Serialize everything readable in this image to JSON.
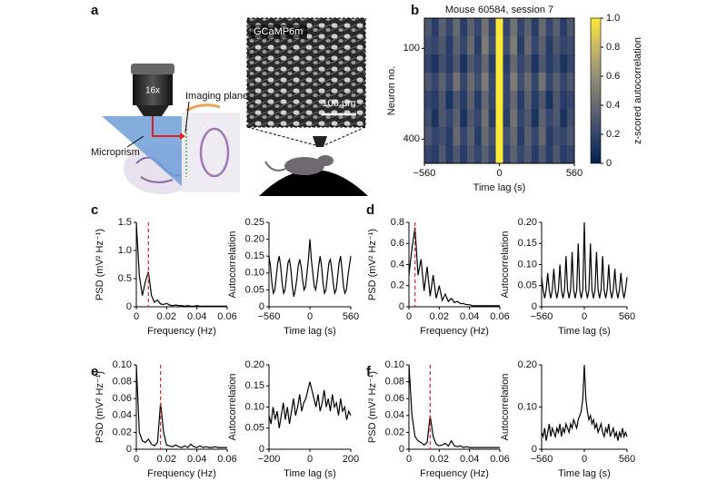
{
  "panel_labels": [
    "a",
    "b",
    "c",
    "d",
    "e",
    "f"
  ],
  "illustration": {
    "objective_label": "16x",
    "imaging_plane": "Imaging plane",
    "microprism": "Microprism",
    "indicator": "GCaMP6m",
    "scale_bar": "100 µm"
  },
  "chart_data": [
    {
      "type": "heatmap",
      "title": "Mouse 60584, session 7",
      "x_label": "Time lag (s)",
      "y_label": "Neuron no.",
      "xlim": [
        -560,
        560
      ],
      "xticks": [
        {
          "value": -560,
          "label": "−560"
        },
        0,
        560
      ],
      "ylim": [
        0,
        480
      ],
      "y_inverted": true,
      "yticks": [
        100,
        400
      ],
      "matrix": [
        [
          0.3,
          0.15,
          0.35,
          0.2,
          0.4,
          0.15,
          0.35,
          0.2,
          0.45,
          0.2,
          1.0,
          0.2,
          0.45,
          0.2,
          0.35,
          0.15,
          0.4,
          0.2,
          0.35,
          0.15,
          0.3
        ],
        [
          0.25,
          0.2,
          0.3,
          0.15,
          0.35,
          0.2,
          0.4,
          0.15,
          0.5,
          0.25,
          1.0,
          0.25,
          0.5,
          0.15,
          0.4,
          0.2,
          0.35,
          0.15,
          0.3,
          0.2,
          0.25
        ],
        [
          0.2,
          0.1,
          0.25,
          0.15,
          0.3,
          0.1,
          0.3,
          0.2,
          0.4,
          0.15,
          1.0,
          0.15,
          0.4,
          0.2,
          0.3,
          0.1,
          0.3,
          0.15,
          0.25,
          0.1,
          0.2
        ],
        [
          0.3,
          0.2,
          0.35,
          0.2,
          0.45,
          0.2,
          0.4,
          0.25,
          0.5,
          0.2,
          1.0,
          0.2,
          0.5,
          0.25,
          0.4,
          0.2,
          0.45,
          0.2,
          0.35,
          0.2,
          0.3
        ],
        [
          0.2,
          0.15,
          0.3,
          0.1,
          0.3,
          0.15,
          0.35,
          0.15,
          0.4,
          0.2,
          1.0,
          0.2,
          0.4,
          0.15,
          0.35,
          0.15,
          0.3,
          0.1,
          0.3,
          0.15,
          0.2
        ],
        [
          0.25,
          0.1,
          0.3,
          0.2,
          0.35,
          0.1,
          0.3,
          0.2,
          0.45,
          0.15,
          1.0,
          0.15,
          0.45,
          0.2,
          0.3,
          0.1,
          0.35,
          0.2,
          0.3,
          0.1,
          0.25
        ],
        [
          0.3,
          0.2,
          0.25,
          0.15,
          0.4,
          0.2,
          0.35,
          0.15,
          0.4,
          0.25,
          1.0,
          0.25,
          0.4,
          0.15,
          0.35,
          0.2,
          0.4,
          0.15,
          0.25,
          0.2,
          0.3
        ],
        [
          0.2,
          0.15,
          0.3,
          0.15,
          0.3,
          0.15,
          0.3,
          0.2,
          0.35,
          0.2,
          1.0,
          0.2,
          0.35,
          0.2,
          0.3,
          0.15,
          0.3,
          0.15,
          0.3,
          0.15,
          0.2
        ]
      ],
      "colorbar": {
        "label": "z-scored autocorrelation",
        "lim": [
          0,
          1
        ],
        "ticks": [
          0,
          0.2,
          0.4,
          0.6,
          0.8,
          {
            "value": 1,
            "label": "1.0"
          }
        ],
        "colors": [
          "#00224e",
          "#35456c",
          "#666970",
          "#948e77",
          "#c8b866",
          "#fee838"
        ]
      }
    },
    {
      "type": "line",
      "x_label": "Frequency (Hz)",
      "y_label": "PSD (mV² Hz⁻¹)",
      "xlim": [
        0,
        0.06
      ],
      "xticks": [
        0,
        0.02,
        0.04,
        0.06
      ],
      "ylim": [
        0,
        1.5
      ],
      "yticks": [
        0,
        0.5,
        {
          "value": 1,
          "label": "1.0"
        },
        1.5
      ],
      "x": [
        0,
        0.002,
        0.004,
        0.006,
        0.008,
        0.01,
        0.012,
        0.014,
        0.016,
        0.018,
        0.02,
        0.022,
        0.024,
        0.026,
        0.028,
        0.03,
        0.032,
        0.034,
        0.036,
        0.038,
        0.04,
        0.042,
        0.044,
        0.046,
        0.048,
        0.05,
        0.052,
        0.054,
        0.056,
        0.058,
        0.06
      ],
      "values": [
        1.5,
        0.55,
        0.2,
        0.45,
        0.62,
        0.2,
        0.08,
        0.12,
        0.05,
        0.04,
        0.06,
        0.03,
        0.02,
        0.03,
        0.02,
        0.02,
        0.01,
        0.02,
        0.01,
        0.01,
        0.02,
        0.01,
        0.01,
        0.01,
        0.01,
        0.01,
        0.01,
        0.01,
        0.01,
        0.01,
        0.01
      ],
      "color": "#000000",
      "vline": {
        "x": 0.008,
        "color": "#d62728"
      }
    },
    {
      "type": "line",
      "x_label": "Time lag (s)",
      "y_label": "Autocorrelation",
      "xlim": [
        -560,
        560
      ],
      "xticks": [
        {
          "value": -560,
          "label": "−560"
        },
        0,
        560
      ],
      "ylim": [
        0,
        0.25
      ],
      "yticks": [
        0,
        0.05,
        {
          "value": 0.1,
          "label": "0.10"
        },
        0.15,
        {
          "value": 0.2,
          "label": "0.20"
        },
        0.25
      ],
      "x": [
        -560,
        -540,
        -520,
        -500,
        -480,
        -460,
        -440,
        -420,
        -400,
        -380,
        -360,
        -340,
        -320,
        -300,
        -280,
        -260,
        -240,
        -220,
        -200,
        -180,
        -160,
        -140,
        -120,
        -100,
        -80,
        -60,
        -40,
        -20,
        0,
        20,
        40,
        60,
        80,
        100,
        120,
        140,
        160,
        180,
        200,
        220,
        240,
        260,
        280,
        300,
        320,
        340,
        360,
        380,
        400,
        420,
        440,
        460,
        480,
        500,
        520,
        540,
        560
      ],
      "values": [
        0.15,
        0.12,
        0.07,
        0.04,
        0.05,
        0.09,
        0.13,
        0.15,
        0.12,
        0.07,
        0.04,
        0.05,
        0.09,
        0.13,
        0.14,
        0.11,
        0.06,
        0.03,
        0.05,
        0.08,
        0.12,
        0.14,
        0.12,
        0.08,
        0.05,
        0.06,
        0.1,
        0.14,
        0.2,
        0.14,
        0.1,
        0.06,
        0.05,
        0.08,
        0.12,
        0.15,
        0.12,
        0.07,
        0.04,
        0.05,
        0.09,
        0.13,
        0.14,
        0.11,
        0.07,
        0.04,
        0.05,
        0.09,
        0.13,
        0.15,
        0.11,
        0.06,
        0.04,
        0.05,
        0.09,
        0.12,
        0.15
      ],
      "color": "#000000"
    },
    {
      "type": "line",
      "x_label": "Frequency (Hz)",
      "y_label": "PSD (mV² Hz⁻¹)",
      "xlim": [
        0,
        0.06
      ],
      "xticks": [
        0,
        0.02,
        0.04,
        0.06
      ],
      "ylim": [
        0,
        0.8
      ],
      "yticks": [
        0,
        0.2,
        0.4,
        0.6,
        0.8
      ],
      "x": [
        0,
        0.002,
        0.004,
        0.006,
        0.008,
        0.01,
        0.012,
        0.014,
        0.016,
        0.018,
        0.02,
        0.022,
        0.024,
        0.026,
        0.028,
        0.03,
        0.032,
        0.034,
        0.036,
        0.038,
        0.04,
        0.042,
        0.044,
        0.046,
        0.048,
        0.05,
        0.052,
        0.054,
        0.056,
        0.058,
        0.06
      ],
      "values": [
        0.3,
        0.55,
        0.75,
        0.3,
        0.45,
        0.15,
        0.38,
        0.1,
        0.3,
        0.08,
        0.2,
        0.06,
        0.12,
        0.05,
        0.08,
        0.04,
        0.05,
        0.03,
        0.03,
        0.02,
        0.02,
        0.01,
        0.01,
        0.01,
        0.01,
        0.01,
        0.01,
        0.01,
        0.01,
        0.01,
        0.01
      ],
      "color": "#000000",
      "vline": {
        "x": 0.004,
        "color": "#d62728"
      }
    },
    {
      "type": "line",
      "x_label": "Time lag (s)",
      "y_label": "Autocorrelation",
      "xlim": [
        -560,
        560
      ],
      "xticks": [
        {
          "value": -560,
          "label": "−560"
        },
        0,
        560
      ],
      "ylim": [
        0,
        0.2
      ],
      "yticks": [
        0,
        0.05,
        {
          "value": 0.1,
          "label": "0.10"
        },
        0.15,
        {
          "value": 0.2,
          "label": "0.20"
        }
      ],
      "x": [
        -560,
        -540,
        -520,
        -500,
        -480,
        -460,
        -440,
        -420,
        -400,
        -380,
        -360,
        -340,
        -320,
        -300,
        -280,
        -260,
        -240,
        -220,
        -200,
        -180,
        -160,
        -140,
        -120,
        -100,
        -80,
        -60,
        -40,
        -20,
        0,
        20,
        40,
        60,
        80,
        100,
        120,
        140,
        160,
        180,
        200,
        220,
        240,
        260,
        280,
        300,
        320,
        340,
        360,
        380,
        400,
        420,
        440,
        460,
        480,
        500,
        520,
        540,
        560
      ],
      "values": [
        0.07,
        0.04,
        0.02,
        0.04,
        0.08,
        0.04,
        0.02,
        0.04,
        0.09,
        0.04,
        0.02,
        0.04,
        0.1,
        0.04,
        0.02,
        0.04,
        0.12,
        0.04,
        0.02,
        0.04,
        0.13,
        0.04,
        0.02,
        0.04,
        0.15,
        0.04,
        0.02,
        0.04,
        0.2,
        0.04,
        0.02,
        0.04,
        0.15,
        0.04,
        0.02,
        0.04,
        0.13,
        0.04,
        0.02,
        0.04,
        0.12,
        0.04,
        0.02,
        0.04,
        0.1,
        0.04,
        0.02,
        0.04,
        0.09,
        0.04,
        0.02,
        0.04,
        0.08,
        0.04,
        0.02,
        0.04,
        0.07
      ],
      "color": "#000000"
    },
    {
      "type": "line",
      "x_label": "Frequency (Hz)",
      "y_label": "PSD (mV² Hz⁻¹)",
      "xlim": [
        0,
        0.06
      ],
      "xticks": [
        0,
        0.02,
        0.04,
        0.06
      ],
      "ylim": [
        0,
        0.1
      ],
      "yticks": [
        0,
        0.02,
        0.04,
        0.06,
        0.08,
        {
          "value": 0.1,
          "label": "0.10"
        }
      ],
      "x": [
        0,
        0.002,
        0.004,
        0.006,
        0.008,
        0.01,
        0.012,
        0.014,
        0.016,
        0.018,
        0.02,
        0.022,
        0.024,
        0.026,
        0.028,
        0.03,
        0.032,
        0.034,
        0.036,
        0.038,
        0.04,
        0.042,
        0.044,
        0.046,
        0.048,
        0.05,
        0.052,
        0.054,
        0.056,
        0.058,
        0.06
      ],
      "values": [
        0.1,
        0.02,
        0.01,
        0.008,
        0.012,
        0.006,
        0.004,
        0.008,
        0.055,
        0.02,
        0.005,
        0.004,
        0.003,
        0.005,
        0.003,
        0.002,
        0.004,
        0.002,
        0.006,
        0.003,
        0.002,
        0.004,
        0.002,
        0.003,
        0.002,
        0.002,
        0.003,
        0.002,
        0.002,
        0.002,
        0.002
      ],
      "color": "#000000",
      "vline": {
        "x": 0.016,
        "color": "#d62728"
      }
    },
    {
      "type": "line",
      "x_label": "Time lag (s)",
      "y_label": "Autocorrelation",
      "xlim": [
        -200,
        200
      ],
      "xticks": [
        {
          "value": -200,
          "label": "−200"
        },
        0,
        200
      ],
      "ylim": [
        0,
        0.2
      ],
      "yticks": [
        0,
        0.05,
        {
          "value": 0.1,
          "label": "0.10"
        },
        0.15,
        {
          "value": 0.2,
          "label": "0.20"
        }
      ],
      "x": [
        -200,
        -190,
        -180,
        -170,
        -160,
        -150,
        -140,
        -130,
        -120,
        -110,
        -100,
        -90,
        -80,
        -70,
        -60,
        -50,
        -40,
        -30,
        -20,
        -10,
        0,
        10,
        20,
        30,
        40,
        50,
        60,
        70,
        80,
        90,
        100,
        110,
        120,
        130,
        140,
        150,
        160,
        170,
        180,
        190,
        200
      ],
      "values": [
        0.08,
        0.06,
        0.1,
        0.07,
        0.09,
        0.05,
        0.08,
        0.11,
        0.07,
        0.1,
        0.06,
        0.09,
        0.12,
        0.08,
        0.1,
        0.13,
        0.09,
        0.11,
        0.12,
        0.14,
        0.16,
        0.14,
        0.12,
        0.1,
        0.13,
        0.09,
        0.11,
        0.14,
        0.1,
        0.12,
        0.09,
        0.13,
        0.1,
        0.11,
        0.08,
        0.12,
        0.09,
        0.1,
        0.07,
        0.09,
        0.08
      ],
      "color": "#000000"
    },
    {
      "type": "line",
      "x_label": "Frequency (Hz)",
      "y_label": "PSD (mV² Hz⁻¹)",
      "xlim": [
        0,
        0.06
      ],
      "xticks": [
        0,
        0.02,
        0.04,
        0.06
      ],
      "ylim": [
        0,
        0.1
      ],
      "yticks": [
        0,
        0.02,
        0.04,
        0.06,
        0.08,
        {
          "value": 0.1,
          "label": "0.10"
        }
      ],
      "x": [
        0,
        0.002,
        0.004,
        0.006,
        0.008,
        0.01,
        0.012,
        0.014,
        0.016,
        0.018,
        0.02,
        0.022,
        0.024,
        0.026,
        0.028,
        0.03,
        0.032,
        0.034,
        0.036,
        0.038,
        0.04,
        0.042,
        0.044,
        0.046,
        0.048,
        0.05,
        0.052,
        0.054,
        0.056,
        0.058,
        0.06
      ],
      "values": [
        0.1,
        0.04,
        0.015,
        0.01,
        0.008,
        0.005,
        0.008,
        0.04,
        0.015,
        0.006,
        0.004,
        0.005,
        0.007,
        0.004,
        0.01,
        0.004,
        0.003,
        0.004,
        0.002,
        0.003,
        0.002,
        0.002,
        0.002,
        0.002,
        0.002,
        0.002,
        0.002,
        0.002,
        0.002,
        0.002,
        0.002
      ],
      "color": "#000000",
      "vline": {
        "x": 0.014,
        "color": "#d62728"
      }
    },
    {
      "type": "line",
      "x_label": "Time lag (s)",
      "y_label": "Autocorrelation",
      "xlim": [
        -560,
        560
      ],
      "xticks": [
        {
          "value": -560,
          "label": "−560"
        },
        0,
        560
      ],
      "ylim": [
        0,
        0.2
      ],
      "yticks": [
        0,
        {
          "value": 0.1,
          "label": "0.10"
        },
        {
          "value": 0.2,
          "label": "0.20"
        }
      ],
      "x": [
        -560,
        -540,
        -520,
        -500,
        -480,
        -460,
        -440,
        -420,
        -400,
        -380,
        -360,
        -340,
        -320,
        -300,
        -280,
        -260,
        -240,
        -220,
        -200,
        -180,
        -160,
        -140,
        -120,
        -100,
        -80,
        -60,
        -40,
        -20,
        0,
        20,
        40,
        60,
        80,
        100,
        120,
        140,
        160,
        180,
        200,
        220,
        240,
        260,
        280,
        300,
        320,
        340,
        360,
        380,
        400,
        420,
        440,
        460,
        480,
        500,
        520,
        540,
        560
      ],
      "values": [
        0.04,
        0.03,
        0.05,
        0.02,
        0.04,
        0.06,
        0.03,
        0.05,
        0.04,
        0.03,
        0.05,
        0.04,
        0.06,
        0.03,
        0.05,
        0.04,
        0.06,
        0.05,
        0.04,
        0.06,
        0.05,
        0.07,
        0.06,
        0.05,
        0.07,
        0.08,
        0.09,
        0.12,
        0.2,
        0.12,
        0.09,
        0.07,
        0.08,
        0.06,
        0.07,
        0.05,
        0.06,
        0.04,
        0.05,
        0.06,
        0.04,
        0.03,
        0.05,
        0.04,
        0.06,
        0.03,
        0.04,
        0.05,
        0.03,
        0.04,
        0.02,
        0.04,
        0.03,
        0.05,
        0.03,
        0.04,
        0.03
      ],
      "color": "#000000"
    }
  ]
}
